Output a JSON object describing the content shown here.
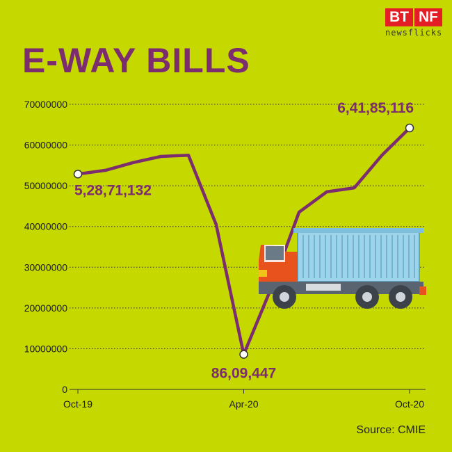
{
  "brand": {
    "top_left": "BT",
    "top_right": "NF",
    "sub": "newsflicks"
  },
  "title": "E-WAY BILLS",
  "source": "Source: CMIE",
  "colors": {
    "background": "#c5d800",
    "line": "#7b2d6e",
    "truck_cab": "#e8521c",
    "truck_container": "#9fd3ea"
  },
  "chart_data": {
    "type": "line",
    "title": "E-WAY BILLS",
    "xlabel": "",
    "ylabel": "",
    "x_tick_labels": [
      "Oct-19",
      "Apr-20",
      "Oct-20"
    ],
    "y_ticks": [
      "0",
      "10000000",
      "20000000",
      "30000000",
      "40000000",
      "50000000",
      "60000000",
      "70000000"
    ],
    "ylim": [
      0,
      70000000
    ],
    "grid": "horizontal dotted",
    "series": [
      {
        "values": [
          52871132,
          53800000,
          55700000,
          57200000,
          57500000,
          40500000,
          8609447,
          25000000,
          43500000,
          48500000,
          49500000,
          57500000,
          64185116
        ]
      }
    ],
    "annotations": [
      {
        "index": 0,
        "label": "5,28,71,132"
      },
      {
        "index": 6,
        "label": "86,09,447"
      },
      {
        "index": 12,
        "label": "6,41,85,116"
      }
    ]
  }
}
